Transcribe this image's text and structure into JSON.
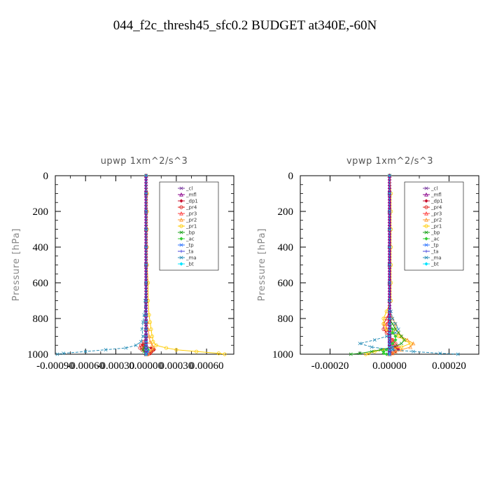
{
  "figure": {
    "title": "044_f2c_thresh45_sfc0.2  BUDGET at340E,-60N"
  },
  "chart_data": [
    {
      "type": "line",
      "title": "upwp   1xm^2/s^3",
      "ylabel": "Pressure [hPa]",
      "xlim": [
        -0.0009,
        0.00087
      ],
      "ylim": [
        1000,
        0
      ],
      "x_ticks": [
        -0.0009,
        -0.0006,
        -0.0003,
        0.0,
        0.0003,
        0.0006
      ],
      "x_tick_labels": [
        "-0.00090",
        "-0.00060",
        "-0.00030",
        "0.00000",
        "0.00030",
        "0.00060"
      ],
      "y_ticks": [
        0,
        200,
        400,
        600,
        800,
        1000
      ],
      "y_tick_labels": [
        "0",
        "200",
        "400",
        "600",
        "800",
        "1000"
      ],
      "legend": {
        "position": "top-right"
      },
      "pressure": [
        0,
        100,
        200,
        300,
        400,
        500,
        600,
        700,
        780,
        820,
        860,
        900,
        930,
        950,
        965,
        975,
        985,
        995,
        1000
      ],
      "series": [
        {
          "name": "_cl",
          "color": "#7b3fa0",
          "marker": "x",
          "values": [
            0,
            0,
            0,
            0,
            0,
            0,
            0,
            0,
            0,
            0,
            0,
            0,
            0,
            0,
            0,
            0,
            0,
            0,
            0
          ]
        },
        {
          "name": "_mfl",
          "color": "#8b008b",
          "marker": "triangle",
          "values": [
            0,
            0,
            0,
            0,
            0,
            0,
            0,
            0,
            0,
            0,
            0,
            0,
            0,
            0,
            0,
            0,
            0,
            0,
            0
          ]
        },
        {
          "name": "_dp1",
          "color": "#c8102e",
          "marker": "diamond",
          "values": [
            0,
            0,
            0,
            0,
            0,
            0,
            0,
            0,
            0,
            0,
            0,
            0,
            0,
            -3e-05,
            5e-05,
            8e-05,
            6e-05,
            4e-05,
            2e-05
          ]
        },
        {
          "name": "_pr4",
          "color": "#e0201b",
          "marker": "circle",
          "values": [
            0,
            0,
            0,
            0,
            0,
            0,
            0,
            0,
            0,
            0,
            0,
            0,
            -2e-05,
            -5e-05,
            -6e-05,
            -4e-05,
            1e-05,
            4e-05,
            2e-05
          ]
        },
        {
          "name": "_pr3",
          "color": "#ff3b3b",
          "marker": "triangle",
          "values": [
            0,
            0,
            0,
            0,
            0,
            0,
            0,
            0,
            0,
            0,
            0,
            0,
            0,
            -2e-05,
            -3e-05,
            -2e-05,
            0,
            1e-05,
            0
          ]
        },
        {
          "name": "_pr2",
          "color": "#ff9933",
          "marker": "triangle",
          "values": [
            0,
            0,
            0,
            0,
            0,
            0,
            0,
            0,
            0,
            1e-05,
            2e-05,
            3e-05,
            4e-05,
            6e-05,
            8e-05,
            6e-05,
            4e-05,
            2e-05,
            1e-05
          ]
        },
        {
          "name": "_pr1",
          "color": "#ffcc00",
          "marker": "circle",
          "values": [
            0,
            1e-05,
            1e-05,
            1e-05,
            1e-05,
            1e-05,
            2e-05,
            2e-05,
            3e-05,
            4e-05,
            5e-05,
            6e-05,
            7e-05,
            0.0001,
            0.0002,
            0.0003,
            0.0005,
            0.00072,
            0.00078
          ]
        },
        {
          "name": "_bp",
          "color": "#1aa01a",
          "marker": "x",
          "values": [
            0,
            0,
            0,
            0,
            0,
            0,
            0,
            0,
            0,
            0,
            0,
            0,
            0,
            -1e-05,
            -2e-05,
            -3e-05,
            -2e-05,
            -1e-05,
            0
          ]
        },
        {
          "name": "_ac",
          "color": "#33cc33",
          "marker": "diamond",
          "values": [
            0,
            0,
            0,
            0,
            0,
            0,
            0,
            0,
            0,
            0,
            0,
            0,
            0,
            0,
            1e-05,
            2e-05,
            1e-05,
            0,
            0
          ]
        },
        {
          "name": "_tp",
          "color": "#3377ff",
          "marker": "x",
          "values": [
            0,
            0,
            0,
            0,
            0,
            0,
            0,
            0,
            0,
            0,
            0,
            0,
            0,
            0,
            0,
            1e-05,
            2e-05,
            1e-05,
            0
          ]
        },
        {
          "name": "_ta",
          "color": "#4444dd",
          "marker": "plus",
          "values": [
            0,
            0,
            0,
            0,
            0,
            0,
            0,
            0,
            0,
            0,
            0,
            0,
            0,
            0,
            0,
            0,
            0,
            0,
            0
          ]
        },
        {
          "name": "_ma",
          "color": "#2a8fb8",
          "marker": "x",
          "values": [
            0,
            0,
            0,
            0,
            0,
            0,
            0,
            -1e-05,
            -2e-05,
            -3e-05,
            -4e-05,
            -3e-05,
            -5e-05,
            -0.0001,
            -0.0002,
            -0.0004,
            -0.0006,
            -0.00082,
            -0.00088
          ]
        },
        {
          "name": "_bt",
          "color": "#00e5ff",
          "marker": "diamond",
          "values": [
            0,
            0,
            0,
            0,
            0,
            0,
            0,
            0,
            0,
            0,
            0,
            0,
            0,
            0,
            0,
            0,
            0,
            0,
            0
          ]
        }
      ]
    },
    {
      "type": "line",
      "title": "vpwp   1xm^2/s^3",
      "ylabel": "Pressure [hPa]",
      "xlim": [
        -0.0003,
        0.0003
      ],
      "ylim": [
        1000,
        0
      ],
      "x_ticks": [
        -0.0002,
        0.0,
        0.0002
      ],
      "x_tick_labels": [
        "-0.00020",
        "0.00000",
        "0.00020"
      ],
      "y_ticks": [
        0,
        200,
        400,
        600,
        800,
        1000
      ],
      "y_tick_labels": [
        "0",
        "200",
        "400",
        "600",
        "800",
        "1000"
      ],
      "legend": {
        "position": "top-right"
      },
      "pressure": [
        0,
        100,
        200,
        300,
        400,
        500,
        600,
        700,
        760,
        800,
        830,
        860,
        880,
        900,
        920,
        940,
        960,
        975,
        985,
        995,
        1000
      ],
      "series": [
        {
          "name": "_cl",
          "color": "#7b3fa0",
          "marker": "x",
          "values": [
            0,
            0,
            0,
            0,
            0,
            0,
            0,
            0,
            0,
            0,
            0,
            0,
            0,
            0,
            0,
            0,
            0,
            0,
            0,
            0,
            0
          ]
        },
        {
          "name": "_mfl",
          "color": "#8b008b",
          "marker": "triangle",
          "values": [
            0,
            0,
            0,
            0,
            0,
            0,
            0,
            0,
            0,
            0,
            0,
            0,
            0,
            0,
            0,
            0,
            0,
            0,
            0,
            0,
            0
          ]
        },
        {
          "name": "_dp1",
          "color": "#c8102e",
          "marker": "diamond",
          "values": [
            0,
            0,
            0,
            0,
            0,
            0,
            0,
            0,
            0,
            0,
            0,
            0,
            0,
            0,
            0,
            1e-05,
            2e-05,
            3e-05,
            2e-05,
            1e-05,
            0
          ]
        },
        {
          "name": "_pr4",
          "color": "#e0201b",
          "marker": "circle",
          "values": [
            0,
            0,
            0,
            0,
            0,
            0,
            0,
            0,
            0,
            -1e-05,
            -2e-05,
            -2e-05,
            -1e-05,
            0,
            1e-05,
            2e-05,
            3e-05,
            2e-05,
            1e-05,
            0,
            0
          ]
        },
        {
          "name": "_pr3",
          "color": "#ff3b3b",
          "marker": "triangle",
          "values": [
            0,
            0,
            0,
            0,
            0,
            0,
            0,
            0,
            0,
            0,
            -1e-05,
            -1e-05,
            0,
            0,
            1e-05,
            1e-05,
            1e-05,
            0,
            0,
            0,
            0
          ]
        },
        {
          "name": "_pr2",
          "color": "#ff9933",
          "marker": "triangle",
          "values": [
            0,
            0,
            0,
            0,
            0,
            0,
            0,
            0,
            0,
            1e-05,
            2e-05,
            2e-05,
            3e-05,
            4e-05,
            6e-05,
            8e-05,
            7e-05,
            4e-05,
            2e-05,
            1e-05,
            0
          ]
        },
        {
          "name": "_pr1",
          "color": "#ffcc00",
          "marker": "circle",
          "values": [
            0,
            5e-06,
            5e-06,
            5e-06,
            5e-06,
            5e-06,
            5e-06,
            5e-06,
            -1e-05,
            -2e-05,
            -2e-05,
            -1e-05,
            1e-05,
            3e-05,
            5e-05,
            7e-05,
            4e-05,
            -2e-05,
            -5e-05,
            -7e-05,
            -8e-05
          ]
        },
        {
          "name": "_bp",
          "color": "#1aa01a",
          "marker": "x",
          "values": [
            0,
            0,
            0,
            0,
            0,
            0,
            0,
            0,
            0,
            0,
            1e-05,
            2e-05,
            3e-05,
            4e-05,
            5e-05,
            4e-05,
            1e-05,
            -3e-05,
            -6e-05,
            -0.0001,
            -0.00013
          ]
        },
        {
          "name": "_ac",
          "color": "#33cc33",
          "marker": "diamond",
          "values": [
            0,
            0,
            0,
            0,
            0,
            0,
            0,
            0,
            0,
            0,
            0,
            1e-05,
            1e-05,
            2e-05,
            2e-05,
            1e-05,
            0,
            -1e-05,
            -2e-05,
            -2e-05,
            -1e-05
          ]
        },
        {
          "name": "_tp",
          "color": "#3377ff",
          "marker": "x",
          "values": [
            0,
            0,
            0,
            0,
            0,
            0,
            0,
            0,
            0,
            0,
            0,
            0,
            0,
            0,
            0,
            0,
            1e-05,
            1e-05,
            0,
            0,
            0
          ]
        },
        {
          "name": "_ta",
          "color": "#4444dd",
          "marker": "plus",
          "values": [
            0,
            0,
            0,
            0,
            0,
            0,
            0,
            0,
            0,
            0,
            0,
            0,
            0,
            0,
            0,
            0,
            0,
            0,
            0,
            0,
            0
          ]
        },
        {
          "name": "_ma",
          "color": "#2a8fb8",
          "marker": "x",
          "values": [
            0,
            0,
            0,
            0,
            0,
            0,
            0,
            0,
            5e-06,
            1e-05,
            2e-05,
            3e-05,
            2e-05,
            -1e-05,
            -5e-05,
            -0.0001,
            -6e-05,
            1e-05,
            8e-05,
            0.00017,
            0.00023
          ]
        },
        {
          "name": "_bt",
          "color": "#00e5ff",
          "marker": "diamond",
          "values": [
            0,
            0,
            0,
            0,
            0,
            0,
            0,
            0,
            0,
            0,
            0,
            0,
            0,
            0,
            0,
            0,
            0,
            0,
            0,
            0,
            0
          ]
        }
      ]
    }
  ]
}
